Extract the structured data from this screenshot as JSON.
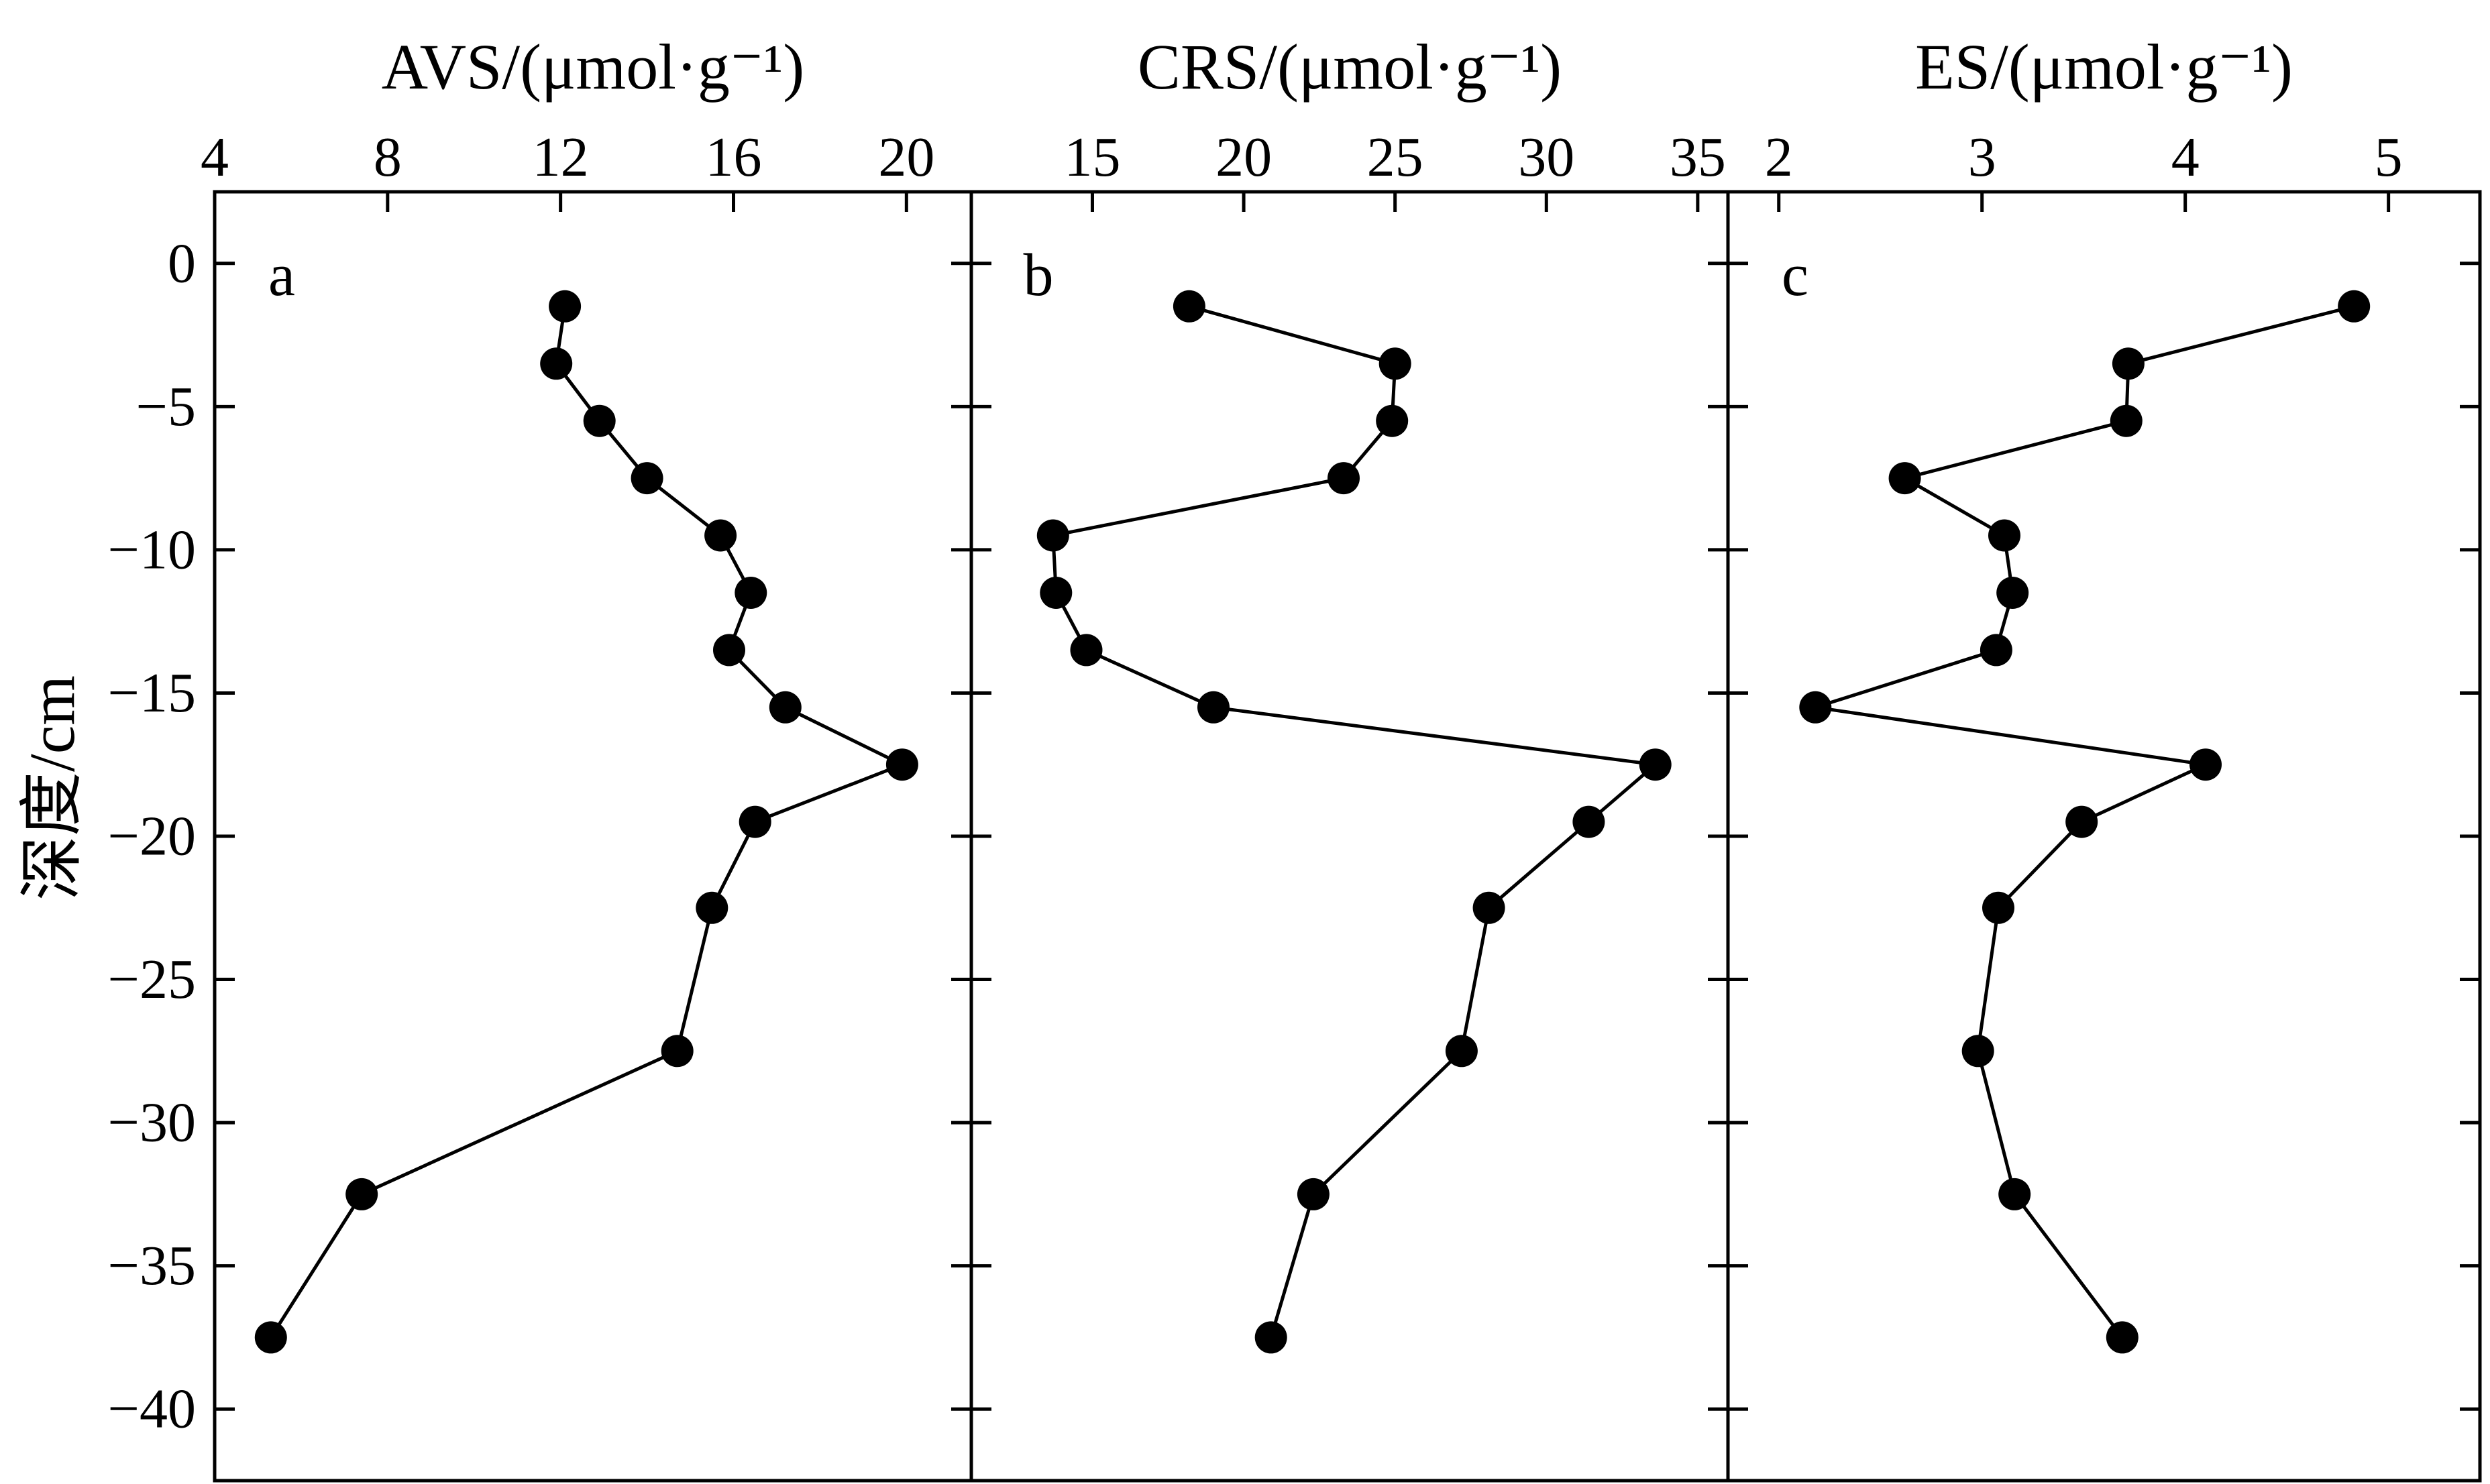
{
  "chart_data": {
    "type": "scatter",
    "layout": "three panels side by side sharing the depth (y) axis",
    "ylabel": "深度/cm",
    "ylim": [
      -42.5,
      2.5
    ],
    "yticks": [
      0,
      -5,
      -10,
      -15,
      -20,
      -25,
      -30,
      -35,
      -40
    ],
    "ytick_labels": [
      "0",
      "−5",
      "−10",
      "−15",
      "−20",
      "−25",
      "−30",
      "−35",
      "−40"
    ],
    "depths": [
      -1.5,
      -3.5,
      -5.5,
      -7.5,
      -9.5,
      -11.5,
      -13.5,
      -15.5,
      -17.5,
      -19.5,
      -22.5,
      -27.5,
      -32.5,
      -37.5
    ],
    "grid": false,
    "legend": false,
    "line_color": "#000000",
    "marker": "filled black circle",
    "panels": [
      {
        "letter": "a",
        "xlabel": "AVS/(μmol·g⁻¹)",
        "x_axis_position": "top",
        "xlim": [
          4,
          21.5
        ],
        "xticks": [
          4,
          8,
          12,
          16,
          20
        ],
        "xtick_labels": [
          "4",
          "8",
          "12",
          "16",
          "20"
        ],
        "values": [
          12.1,
          11.9,
          12.9,
          14.0,
          15.7,
          16.4,
          15.9,
          17.2,
          19.9,
          16.5,
          15.5,
          14.7,
          7.4,
          5.3
        ]
      },
      {
        "letter": "b",
        "xlabel": "CRS/(μmol·g⁻¹)",
        "x_axis_position": "top",
        "xlim": [
          11,
          36
        ],
        "xticks": [
          15,
          20,
          25,
          30,
          35
        ],
        "xtick_labels": [
          "15",
          "20",
          "25",
          "30",
          "35"
        ],
        "values": [
          18.2,
          25.0,
          24.9,
          23.3,
          13.7,
          13.8,
          14.8,
          19.0,
          33.6,
          31.4,
          28.1,
          27.2,
          22.3,
          20.9
        ]
      },
      {
        "letter": "c",
        "xlabel": "ES/(μmol·g⁻¹)",
        "x_axis_position": "top",
        "xlim": [
          1.75,
          5.45
        ],
        "xticks": [
          2,
          3,
          4,
          5
        ],
        "xtick_labels": [
          "2",
          "3",
          "4",
          "5"
        ],
        "values": [
          4.83,
          3.72,
          3.71,
          2.62,
          3.11,
          3.15,
          3.07,
          2.18,
          4.1,
          3.49,
          3.08,
          2.98,
          3.16,
          3.69
        ]
      }
    ]
  }
}
